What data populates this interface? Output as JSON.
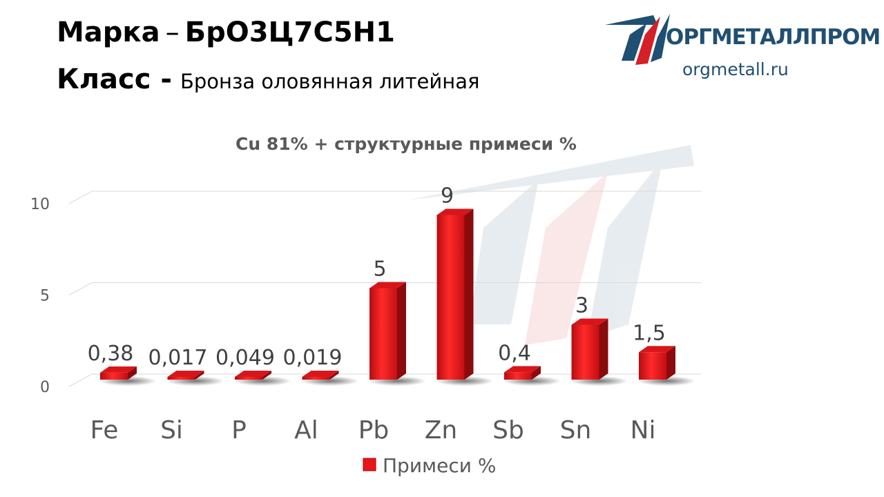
{
  "header": {
    "grade_label": "Марка",
    "grade_dash": "–",
    "grade_value": "БрО3Ц7С5Н1",
    "class_label": "Класс -",
    "class_value": "Бронза оловянная литейная"
  },
  "logo": {
    "name": "ОРГМЕТАЛЛПРОМ",
    "url": "orgmetall.ru",
    "icon": "orgmetall-logo-icon",
    "colors": {
      "blue": "#1f4f73",
      "red": "#d42027"
    }
  },
  "chart_data": {
    "type": "bar",
    "title": "Cu 81% + структурные примеси %",
    "categories": [
      "Fe",
      "Si",
      "P",
      "Al",
      "Pb",
      "Zn",
      "Sb",
      "Sn",
      "Ni"
    ],
    "series": [
      {
        "name": "Примеси %",
        "values": [
          0.38,
          0.017,
          0.049,
          0.019,
          5,
          9,
          0.4,
          3,
          1.5
        ],
        "labels": [
          "0,38",
          "0,017",
          "0,049",
          "0,019",
          "5",
          "9",
          "0,4",
          "3",
          "1,5"
        ],
        "color": "#e8161b"
      }
    ],
    "yticks": [
      0,
      5,
      10
    ],
    "ytick_labels": [
      "0",
      "5",
      "10"
    ],
    "ylim": [
      0,
      10
    ],
    "xlabel": "",
    "ylabel": "",
    "grid": true,
    "legend": "bottom-center",
    "style": "3d"
  }
}
